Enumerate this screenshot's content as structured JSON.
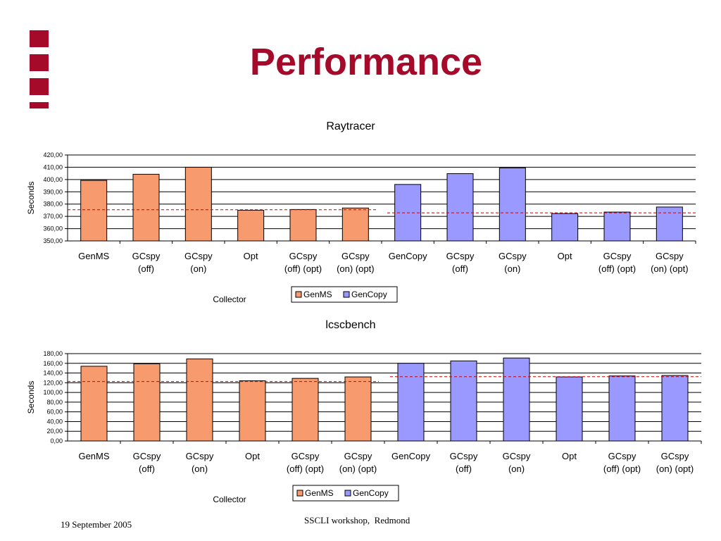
{
  "slide": {
    "title": "Performance",
    "footer_date": "19 September 2005",
    "footer_venue": "SSCLI workshop,  Redmond"
  },
  "colors": {
    "title": "#a50a2a",
    "genms_fill": "#f79a6e",
    "gencopy_fill": "#9999ff",
    "average_line": "#cc0000",
    "logo": "#a50a2a"
  },
  "chart_data": [
    {
      "type": "bar",
      "title": "Raytracer",
      "xlabel": "Collector",
      "ylabel": "Seconds",
      "ylim": [
        350,
        420
      ],
      "ytick_step": 10,
      "ytick_labels": [
        "350,00",
        "360,00",
        "370,00",
        "380,00",
        "390,00",
        "400,00",
        "410,00",
        "420,00"
      ],
      "grid": true,
      "legend_position": "bottom-center",
      "categories": [
        [
          "GenMS"
        ],
        [
          "GCspy",
          "(off)"
        ],
        [
          "GCspy",
          "(on)"
        ],
        [
          "Opt"
        ],
        [
          "GCspy",
          "(off) (opt)"
        ],
        [
          "GCspy",
          "(on) (opt)"
        ],
        [
          "GenCopy"
        ],
        [
          "GCspy",
          "(off)"
        ],
        [
          "GCspy",
          "(on)"
        ],
        [
          "Opt"
        ],
        [
          "GCspy",
          "(off) (opt)"
        ],
        [
          "GCspy",
          "(on) (opt)"
        ]
      ],
      "values": [
        399.3,
        404.3,
        410,
        375,
        375.6,
        376.8,
        396,
        404.8,
        409.5,
        372.3,
        373.5,
        377.6
      ],
      "series_index": [
        0,
        0,
        0,
        0,
        0,
        0,
        1,
        1,
        1,
        1,
        1,
        1
      ],
      "series": [
        {
          "name": "GenMS"
        },
        {
          "name": "GenCopy"
        }
      ],
      "reference_lines": [
        {
          "series": "GenMS",
          "value": 375.4
        },
        {
          "series": "GenCopy",
          "value": 372.9
        }
      ]
    },
    {
      "type": "bar",
      "title": "lcscbench",
      "xlabel": "Collector",
      "ylabel": "Seconds",
      "ylim": [
        0,
        180
      ],
      "ytick_step": 20,
      "ytick_labels": [
        "0,00",
        "20,00",
        "40,00",
        "60,00",
        "80,00",
        "100,00",
        "120,00",
        "140,00",
        "160,00",
        "180,00"
      ],
      "grid": true,
      "legend_position": "bottom-center",
      "categories": [
        [
          "GenMS"
        ],
        [
          "GCspy",
          "(off)"
        ],
        [
          "GCspy",
          "(on)"
        ],
        [
          "Opt"
        ],
        [
          "GCspy",
          "(off) (opt)"
        ],
        [
          "GCspy",
          "(on) (opt)"
        ],
        [
          "GenCopy"
        ],
        [
          "GCspy",
          "(off)"
        ],
        [
          "GCspy",
          "(on)"
        ],
        [
          "Opt"
        ],
        [
          "GCspy",
          "(off) (opt)"
        ],
        [
          "GCspy",
          "(on) (opt)"
        ]
      ],
      "values": [
        154,
        159,
        169,
        124,
        129,
        132,
        160,
        165,
        171,
        132,
        134,
        135
      ],
      "series_index": [
        0,
        0,
        0,
        0,
        0,
        0,
        1,
        1,
        1,
        1,
        1,
        1
      ],
      "series": [
        {
          "name": "GenMS"
        },
        {
          "name": "GenCopy"
        }
      ],
      "reference_lines": [
        {
          "series": "GenMS",
          "value": 122.5
        },
        {
          "series": "GenCopy",
          "value": 132.5
        }
      ]
    }
  ]
}
